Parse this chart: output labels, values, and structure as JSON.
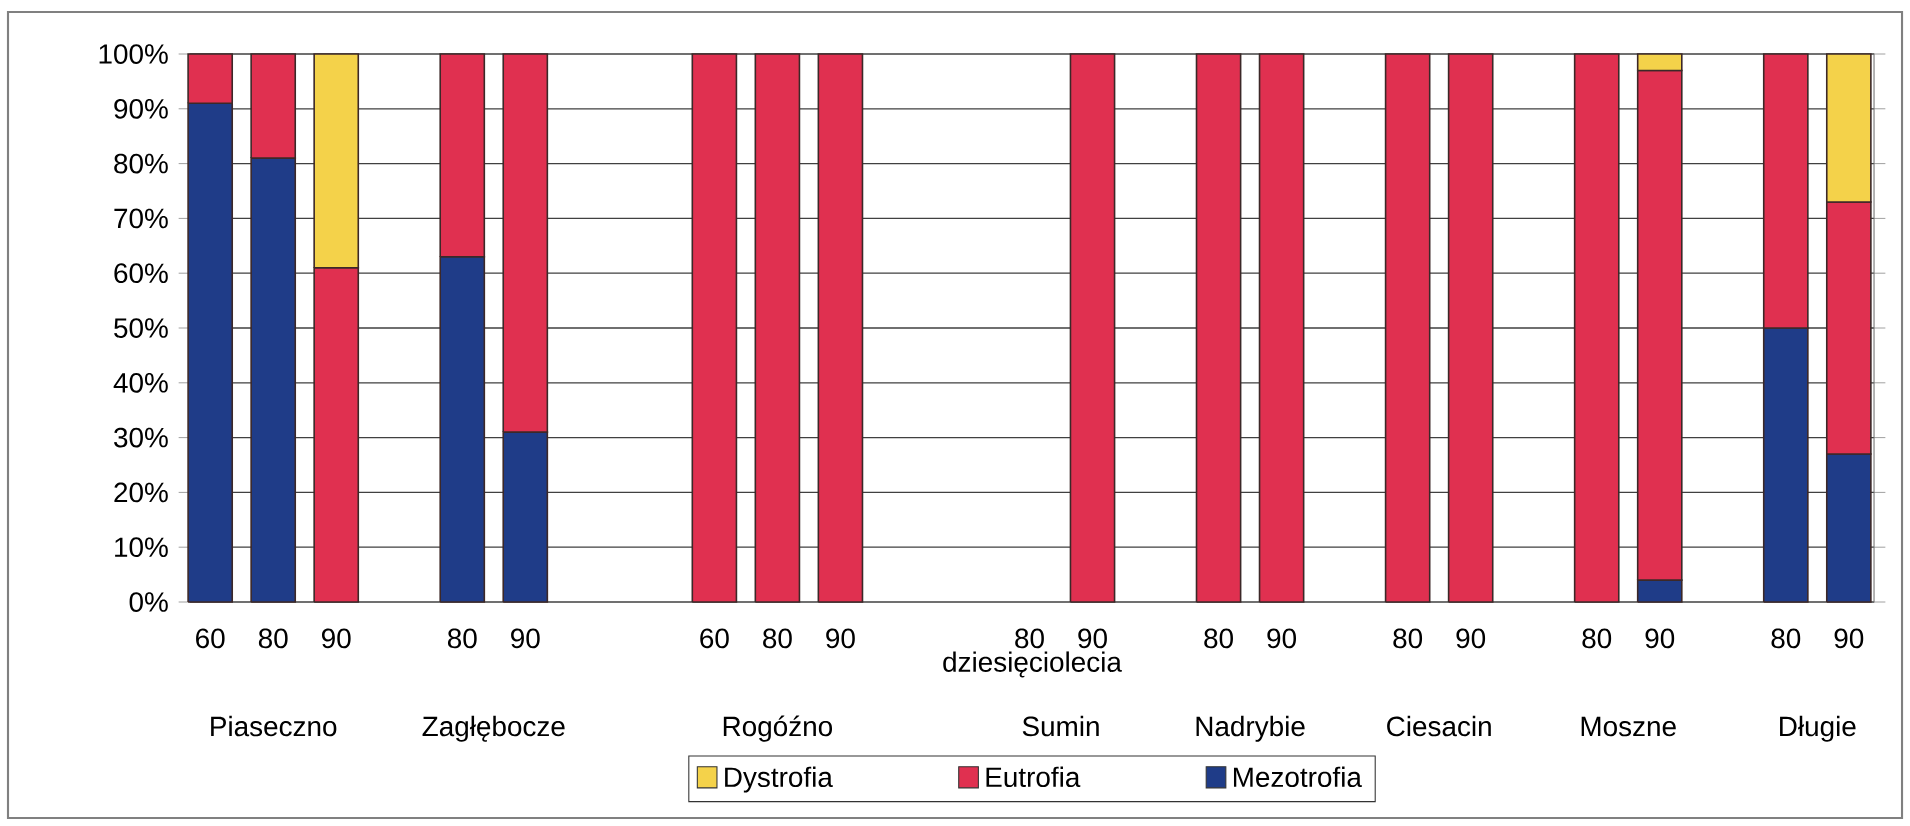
{
  "chart_data": {
    "type": "bar",
    "stacked": true,
    "xlabel": "dziesięciolecia",
    "categories": [
      "60",
      "80",
      "90",
      null,
      "80",
      "90",
      null,
      null,
      "60",
      "80",
      "90",
      null,
      null,
      "80",
      "90",
      null,
      "80",
      "90",
      null,
      "80",
      "90",
      null,
      "80",
      "90",
      null,
      "80",
      "90"
    ],
    "series": [
      {
        "name": "Mezotrofia",
        "color": "#1f3c88",
        "values": [
          91,
          81,
          null,
          null,
          63,
          31,
          null,
          null,
          null,
          null,
          null,
          null,
          null,
          null,
          null,
          null,
          null,
          null,
          null,
          null,
          null,
          null,
          null,
          4,
          null,
          50,
          27
        ]
      },
      {
        "name": "Eutrofia",
        "color": "#e03050",
        "values": [
          9,
          19,
          61,
          null,
          37,
          69,
          null,
          null,
          100,
          100,
          100,
          null,
          null,
          null,
          100,
          null,
          100,
          100,
          null,
          100,
          100,
          null,
          100,
          93,
          null,
          50,
          46
        ]
      },
      {
        "name": "Dystrofia",
        "color": "#f4d24a",
        "values": [
          null,
          null,
          39,
          null,
          null,
          null,
          null,
          null,
          null,
          null,
          null,
          null,
          null,
          null,
          null,
          null,
          null,
          null,
          null,
          null,
          null,
          null,
          null,
          3,
          null,
          null,
          27
        ]
      }
    ],
    "ylim": [
      0,
      100
    ],
    "yticks": [
      {
        "value": 0,
        "label": "0%"
      },
      {
        "value": 10,
        "label": "10%"
      },
      {
        "value": 20,
        "label": "20%"
      },
      {
        "value": 30,
        "label": "30%"
      },
      {
        "value": 40,
        "label": "40%"
      },
      {
        "value": 50,
        "label": "50%"
      },
      {
        "value": 60,
        "label": "60%"
      },
      {
        "value": 70,
        "label": "70%"
      },
      {
        "value": 80,
        "label": "80%"
      },
      {
        "value": 90,
        "label": "90%"
      },
      {
        "value": 100,
        "label": "100%"
      }
    ],
    "grid": "y",
    "legend": "bottom",
    "annotations": [
      "Piaseczno",
      "Zagłębocze",
      "Rogóźno",
      "Sumin",
      "Nadrybie",
      "Ciesacin",
      "Moszne",
      "Długie"
    ]
  }
}
